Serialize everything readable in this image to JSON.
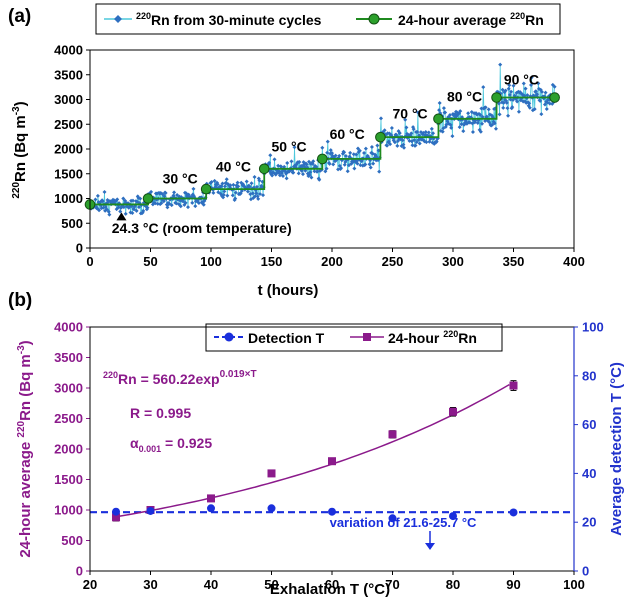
{
  "chart_data": [
    {
      "panel_label": "(a)",
      "type": "line",
      "xlabel": "t (hours)",
      "ylabel_parts": {
        "sup": "220",
        "text": "Rn (Bq m",
        "exp": "-3",
        "close": ")"
      },
      "xlim": [
        0,
        400
      ],
      "ylim": [
        0,
        4000
      ],
      "xticks": [
        "0",
        "50",
        "100",
        "150",
        "200",
        "250",
        "300",
        "350",
        "400"
      ],
      "yticks": [
        "0",
        "500",
        "1000",
        "1500",
        "2000",
        "2500",
        "3000",
        "3500",
        "4000"
      ],
      "legend": {
        "position": "top",
        "entries": [
          {
            "sup": "220",
            "text": "Rn from 30-minute cycles"
          },
          {
            "pre": "24-hour average ",
            "sup": "220",
            "text": "Rn"
          }
        ]
      },
      "colors": {
        "cycles_line": "#4dc8dc",
        "cycles_marker": "#2e6fc0",
        "average": "#1f8a1f",
        "average_marker": "#2ca02c"
      },
      "series": [
        {
          "name": "24-hour average 220Rn",
          "steps": [
            {
              "x0": 0,
              "x1": 48,
              "y": 880
            },
            {
              "x0": 48,
              "x1": 96,
              "y": 1000
            },
            {
              "x0": 96,
              "x1": 144,
              "y": 1190
            },
            {
              "x0": 144,
              "x1": 192,
              "y": 1600
            },
            {
              "x0": 192,
              "x1": 240,
              "y": 1800
            },
            {
              "x0": 240,
              "x1": 288,
              "y": 2240
            },
            {
              "x0": 288,
              "x1": 336,
              "y": 2610
            },
            {
              "x0": 336,
              "x1": 384,
              "y": 3040
            }
          ]
        },
        {
          "name": "220Rn from 30-minute cycles",
          "interval_hours": 0.5,
          "noise_amplitude": 260,
          "note": "dense scatter around each 24-hour level (individual points not readable)"
        }
      ],
      "annotations": [
        {
          "text": "30 °C",
          "x": 60,
          "y": 1300
        },
        {
          "text": "40 °C",
          "x": 104,
          "y": 1550
        },
        {
          "text": "50 °C",
          "x": 150,
          "y": 1950
        },
        {
          "text": "60 °C",
          "x": 198,
          "y": 2200
        },
        {
          "text": "70 °C",
          "x": 250,
          "y": 2620
        },
        {
          "text": "80 °C",
          "x": 295,
          "y": 2960
        },
        {
          "text": "90 °C",
          "x": 342,
          "y": 3300
        },
        {
          "text": "24.3 °C (room  temperature)",
          "x": 18,
          "y": 300,
          "arrow_to": [
            18,
            780
          ]
        }
      ]
    },
    {
      "panel_label": "(b)",
      "type": "scatter",
      "xlabel": "Exhalation T (°C)",
      "ylabel_parts": {
        "pre": "24-hour average ",
        "sup": "220",
        "text": "Rn (Bq m",
        "exp": "-3",
        "close": ")"
      },
      "y2label": "Average detection T (°C)",
      "xlim": [
        20,
        100
      ],
      "ylim": [
        0,
        4000
      ],
      "y2lim": [
        0,
        100
      ],
      "xticks": [
        "20",
        "30",
        "40",
        "50",
        "60",
        "70",
        "80",
        "90",
        "100"
      ],
      "yticks": [
        "0",
        "500",
        "1000",
        "1500",
        "2000",
        "2500",
        "3000",
        "3500",
        "4000"
      ],
      "y2ticks": [
        "0",
        "20",
        "40",
        "60",
        "80",
        "100"
      ],
      "legend": {
        "position": "top",
        "entries": [
          {
            "text": "Detection T"
          },
          {
            "pre": "24-hour ",
            "sup": "220",
            "text": "Rn"
          }
        ]
      },
      "colors": {
        "rn": "#8b1a8b",
        "fit": "#8b1a8b",
        "detection": "#1a2fdc",
        "axis2": "#2233cc"
      },
      "x": [
        24.3,
        30,
        40,
        50,
        60,
        70,
        80,
        90
      ],
      "series": [
        {
          "name": "24-hour 220Rn",
          "axis": "left",
          "marker": "square",
          "values": [
            880,
            1000,
            1190,
            1600,
            1800,
            2240,
            2610,
            3040
          ],
          "errors": [
            60,
            40,
            50,
            40,
            40,
            60,
            70,
            80
          ]
        },
        {
          "name": "Detection T",
          "axis": "right",
          "marker": "circle",
          "values": [
            24.3,
            24.6,
            25.7,
            25.7,
            24.3,
            21.6,
            22.5,
            24.0
          ]
        }
      ],
      "fit": {
        "a": 560.22,
        "b": 0.019,
        "x_range": [
          24.3,
          90
        ]
      },
      "reference_line": {
        "axis": "right",
        "y": 24.1,
        "style": "dashed"
      },
      "equation": {
        "sup": "220",
        "text": "Rn = 560.22exp",
        "exp": "0.019×T"
      },
      "r_text": "R = 0.995",
      "alpha_text": {
        "sym": "α",
        "sub": "0.001",
        "rest": " = 0.925"
      },
      "variation_text": "variation of 21.6-25.7 °C"
    }
  ]
}
